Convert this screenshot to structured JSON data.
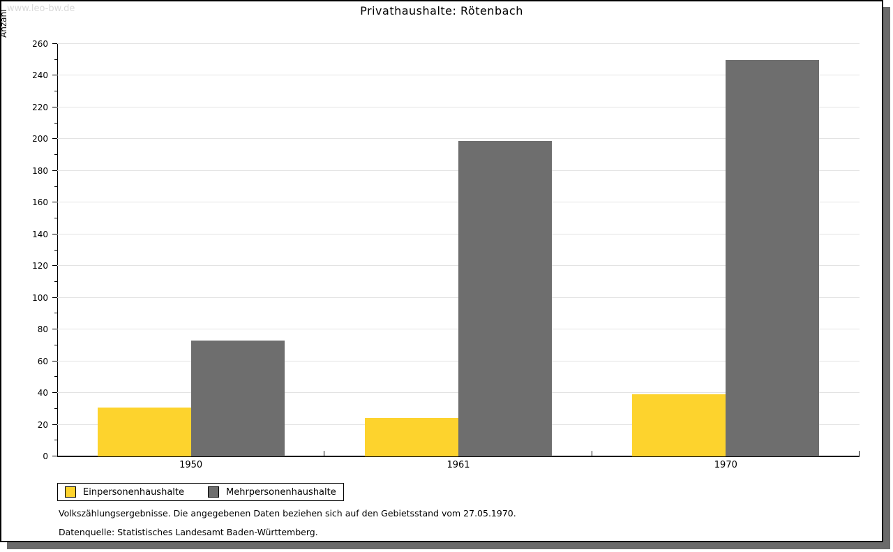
{
  "watermark": "www.leo-bw.de",
  "title": "Privathaushalte: Rötenbach",
  "chart_data": {
    "type": "bar",
    "title": "Privathaushalte: Rötenbach",
    "categories": [
      "1950",
      "1961",
      "1970"
    ],
    "series": [
      {
        "name": "Einpersonenhaushalte",
        "color": "#fdd32d",
        "values": [
          31,
          24,
          39
        ]
      },
      {
        "name": "Mehrpersonenhaushalte",
        "color": "#6e6e6e",
        "values": [
          73,
          199,
          250
        ]
      }
    ],
    "xlabel": "",
    "ylabel": "Anzahl",
    "ylim": [
      0,
      260
    ],
    "ytick_step": 20,
    "yminor_step": 10,
    "grid": true,
    "legend_position": "bottom-left"
  },
  "footnotes": [
    "Volkszählungsergebnisse. Die angegebenen Daten beziehen sich auf den Gebietsstand vom 27.05.1970.",
    "Datenquelle: Statistisches Landesamt Baden-Württemberg."
  ],
  "colors": {
    "bar_yellow": "#fdd32d",
    "bar_gray": "#6e6e6e",
    "gridline": "#e3e3e3",
    "frame_border": "#000000",
    "shadow": "#6b6b6b",
    "watermark": "#d9d9d9"
  }
}
